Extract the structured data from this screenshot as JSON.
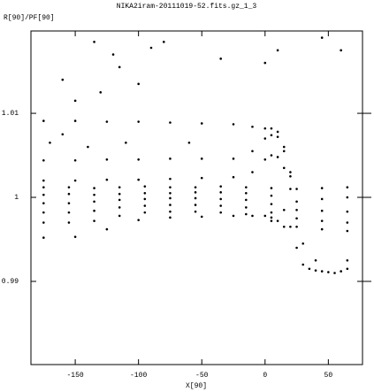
{
  "chart_data": {
    "type": "scatter",
    "title": "NIKA2iram-20111019-52.fits.gz_1_3",
    "y_label": "R[90]/PF[90]",
    "x_label": "X[90]",
    "xlim": [
      -185,
      77
    ],
    "ylim": [
      0.9801,
      1.0198
    ],
    "xticks": [
      -150,
      -100,
      -50,
      0,
      50
    ],
    "yticks": [
      0.99,
      1,
      1.01
    ],
    "color": "#000000",
    "series": [
      {
        "x": [
          -175,
          -150,
          -125,
          -100,
          -75,
          -50,
          -25,
          -10,
          0,
          5,
          10,
          15,
          20
        ],
        "values": [
          1.0091,
          1.0091,
          1.009,
          1.009,
          1.0089,
          1.0088,
          1.0087,
          1.0084,
          1.0082,
          1.0082,
          1.0078,
          1.006,
          1.003
        ]
      },
      {
        "x": [
          -175,
          -150,
          -125,
          -100,
          -75,
          -50,
          -25,
          -10,
          0,
          5,
          10,
          15,
          20
        ],
        "values": [
          1.0044,
          1.0044,
          1.0045,
          1.0045,
          1.0046,
          1.0046,
          1.0046,
          1.0055,
          1.007,
          1.0074,
          1.0072,
          1.0055,
          1.0025
        ]
      },
      {
        "x": [
          -175,
          -150,
          -125,
          -100,
          -75,
          -50,
          -25,
          -10,
          0,
          5,
          10,
          15,
          20
        ],
        "values": [
          1.002,
          1.002,
          1.0021,
          1.0021,
          1.0022,
          1.0023,
          1.0024,
          1.003,
          1.0045,
          1.005,
          1.0048,
          1.0035,
          1.001
        ]
      },
      {
        "x": [
          -175,
          -155,
          -135,
          -115,
          -95,
          -75,
          -55,
          -35,
          -15,
          5,
          25,
          45,
          65
        ],
        "values": [
          1.0012,
          1.0012,
          1.0011,
          1.0012,
          1.0013,
          1.0012,
          1.0012,
          1.0013,
          1.0012,
          1.0011,
          1.001,
          1.0011,
          1.0012
        ]
      },
      {
        "x": [
          -175,
          -155,
          -135,
          -115,
          -95,
          -75,
          -55,
          -35,
          -15,
          5,
          25,
          45,
          65
        ],
        "values": [
          1.0003,
          1.0004,
          1.0003,
          1.0004,
          1.0005,
          1.0005,
          1.0006,
          1.0006,
          1.0005,
          1.0002,
          0.9995,
          0.9998,
          1.0
        ]
      },
      {
        "x": [
          -175,
          -155,
          -135,
          -115,
          -95,
          -75,
          -55,
          -35,
          -15,
          5,
          25,
          45,
          65
        ],
        "values": [
          0.9993,
          0.9993,
          0.9995,
          0.9997,
          0.9998,
          0.9999,
          0.9999,
          0.9998,
          0.9997,
          0.9992,
          0.9985,
          0.9984,
          0.9983
        ]
      },
      {
        "x": [
          -175,
          -155,
          -135,
          -115,
          -95,
          -75,
          -55,
          -35,
          -15,
          5,
          25,
          45,
          65
        ],
        "values": [
          0.9982,
          0.9982,
          0.9984,
          0.9988,
          0.999,
          0.9991,
          0.9991,
          0.999,
          0.9988,
          0.9982,
          0.9975,
          0.9972,
          0.997
        ]
      },
      {
        "x": [
          -175,
          -155,
          -135,
          -115,
          -95,
          -75,
          -55,
          -35,
          -15,
          5,
          25,
          45,
          65
        ],
        "values": [
          0.997,
          0.997,
          0.9972,
          0.9978,
          0.9982,
          0.9983,
          0.9983,
          0.9982,
          0.998,
          0.9972,
          0.9965,
          0.9962,
          0.996
        ]
      },
      {
        "x": [
          -175,
          -150,
          -125,
          -100,
          -75,
          -50,
          -25,
          -10,
          0,
          5,
          10,
          15
        ],
        "values": [
          0.9952,
          0.9953,
          0.9962,
          0.9973,
          0.9976,
          0.9977,
          0.9978,
          0.9978,
          0.9978,
          0.9976,
          0.9972,
          0.9965
        ]
      },
      {
        "x": [
          15,
          20,
          25,
          30,
          35,
          40,
          45,
          50,
          55,
          60,
          65
        ],
        "values": [
          0.9985,
          0.9965,
          0.994,
          0.992,
          0.9915,
          0.9913,
          0.9912,
          0.9911,
          0.991,
          0.9912,
          0.9915
        ]
      },
      {
        "x": [
          -135,
          -120,
          -115,
          -100,
          -90,
          -160,
          -150,
          -130,
          -80,
          -35,
          0,
          10,
          45,
          60,
          -170,
          -160,
          -140,
          -110,
          -60,
          30,
          40,
          65
        ],
        "values": [
          1.0185,
          1.017,
          1.0155,
          1.0135,
          1.0178,
          1.014,
          1.0115,
          1.0125,
          1.0185,
          1.0165,
          1.016,
          1.0175,
          1.019,
          1.0175,
          1.0065,
          1.0075,
          1.006,
          1.0065,
          1.0065,
          0.9945,
          0.9925,
          0.9925
        ]
      }
    ]
  }
}
